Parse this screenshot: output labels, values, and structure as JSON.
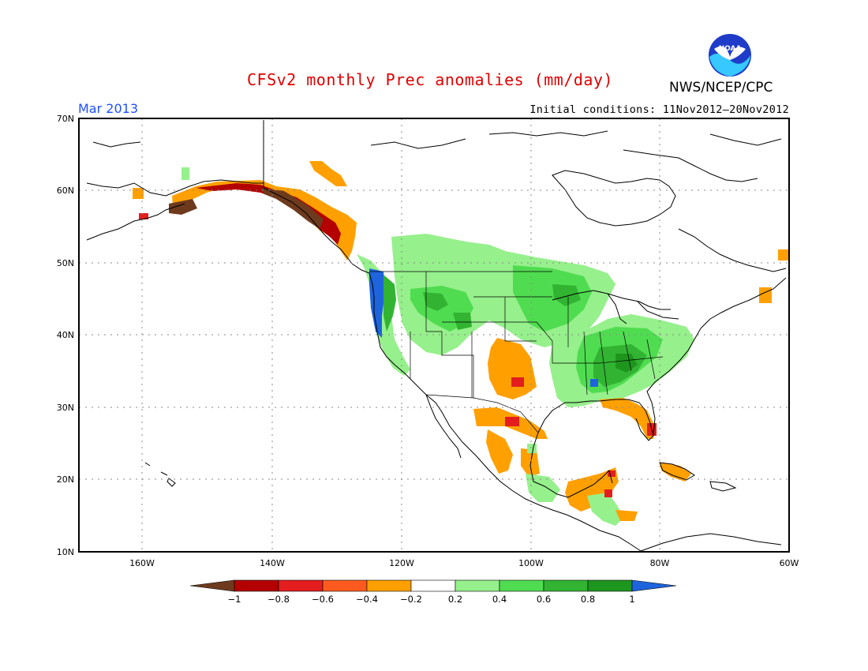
{
  "header": {
    "title": "CFSv2 monthly Prec anomalies (mm/day)",
    "month": "Mar 2013",
    "initial_conditions": "Initial conditions: 11Nov2012—20Nov2012",
    "org": "NWS/NCEP/CPC",
    "logo_text": "NOAA",
    "logo_icon": "noaa-logo-icon"
  },
  "axes": {
    "lat_labels": [
      "70N",
      "60N",
      "50N",
      "40N",
      "30N",
      "20N",
      "10N"
    ],
    "lon_labels": [
      "160W",
      "140W",
      "120W",
      "100W",
      "80W",
      "60W"
    ]
  },
  "colorbar": {
    "labels": [
      "−1",
      "−0.8",
      "−0.6",
      "−0.4",
      "−0.2",
      "0.2",
      "0.4",
      "0.6",
      "0.8",
      "1"
    ],
    "colors": [
      "#6e3a1e",
      "#b40000",
      "#e41e1e",
      "#ff5a1e",
      "#ffa000",
      "#ffffff",
      "#96f08c",
      "#50dc50",
      "#32b432",
      "#1e961e",
      "#1e64dc"
    ]
  },
  "anomaly_colors": {
    "dry_extreme": "#6e3a1e",
    "dry_strong": "#b40000",
    "dry_moderate": "#e41e1e",
    "dry_light": "#ff5a1e",
    "dry_weak": "#ffa000",
    "wet_weak": "#96f08c",
    "wet_light": "#50dc50",
    "wet_moderate": "#32b432",
    "wet_strong": "#1e961e",
    "wet_extreme": "#1e64dc"
  }
}
